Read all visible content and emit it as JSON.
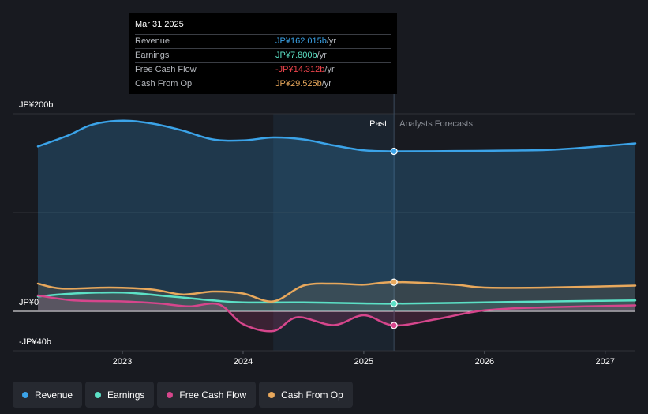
{
  "chart_data": {
    "type": "line",
    "y_unit_prefix": "JP¥",
    "y_axis_labels": [
      "JP¥200b",
      "JP¥0",
      "-JP¥40b"
    ],
    "ylim": [
      -40,
      200
    ],
    "x_ticks": [
      "2023",
      "2024",
      "2025",
      "2026",
      "2027"
    ],
    "xlim": [
      2022.3,
      2027.25
    ],
    "past_label": "Past",
    "forecast_label": "Analysts Forecasts",
    "highlight_start": 2024.25,
    "divider_x": 2025.25,
    "series": [
      {
        "name": "Revenue",
        "key": "revenue",
        "color": "#3ba3e8",
        "points": [
          [
            2022.3,
            167
          ],
          [
            2022.55,
            178
          ],
          [
            2022.75,
            189
          ],
          [
            2023.0,
            193
          ],
          [
            2023.25,
            190
          ],
          [
            2023.5,
            183
          ],
          [
            2023.75,
            174
          ],
          [
            2024.0,
            173
          ],
          [
            2024.25,
            176
          ],
          [
            2024.5,
            174
          ],
          [
            2024.75,
            168
          ],
          [
            2025.0,
            163
          ],
          [
            2025.25,
            162
          ],
          [
            2025.75,
            162.3
          ],
          [
            2026.25,
            162.8
          ],
          [
            2026.5,
            163.3
          ],
          [
            2026.75,
            165
          ],
          [
            2027.25,
            170
          ]
        ]
      },
      {
        "name": "Earnings",
        "key": "earnings",
        "color": "#5ce1c6",
        "points": [
          [
            2022.3,
            15
          ],
          [
            2022.6,
            18
          ],
          [
            2023.0,
            19
          ],
          [
            2023.4,
            15
          ],
          [
            2023.75,
            11
          ],
          [
            2024.0,
            9
          ],
          [
            2024.5,
            9
          ],
          [
            2025.0,
            8
          ],
          [
            2025.25,
            7.8
          ],
          [
            2025.75,
            8.5
          ],
          [
            2026.25,
            9.5
          ],
          [
            2026.75,
            10.3
          ],
          [
            2027.25,
            11
          ]
        ]
      },
      {
        "name": "Free Cash Flow",
        "key": "fcf",
        "color": "#d6468c",
        "points": [
          [
            2022.3,
            16
          ],
          [
            2022.6,
            11
          ],
          [
            2023.0,
            10
          ],
          [
            2023.3,
            8
          ],
          [
            2023.55,
            5
          ],
          [
            2023.8,
            7
          ],
          [
            2024.0,
            -13
          ],
          [
            2024.25,
            -20
          ],
          [
            2024.45,
            -6
          ],
          [
            2024.75,
            -14
          ],
          [
            2025.0,
            -4
          ],
          [
            2025.25,
            -14.3
          ],
          [
            2025.6,
            -8
          ],
          [
            2026.0,
            1
          ],
          [
            2026.5,
            4
          ],
          [
            2027.25,
            6
          ]
        ]
      },
      {
        "name": "Cash From Op",
        "key": "cfo",
        "color": "#e8a85c",
        "points": [
          [
            2022.3,
            28
          ],
          [
            2022.5,
            23
          ],
          [
            2022.9,
            24
          ],
          [
            2023.25,
            22
          ],
          [
            2023.5,
            17
          ],
          [
            2023.75,
            20
          ],
          [
            2024.0,
            18
          ],
          [
            2024.25,
            10
          ],
          [
            2024.5,
            26
          ],
          [
            2024.75,
            28
          ],
          [
            2025.0,
            27
          ],
          [
            2025.25,
            29.5
          ],
          [
            2025.75,
            27
          ],
          [
            2026.0,
            24
          ],
          [
            2026.5,
            24
          ],
          [
            2027.25,
            26
          ]
        ]
      }
    ]
  },
  "tooltip": {
    "date": "Mar 31 2025",
    "rows": [
      {
        "label": "Revenue",
        "value": "JP¥162.015b",
        "unit": " /yr",
        "color": "#3ba3e8"
      },
      {
        "label": "Earnings",
        "value": "JP¥7.800b",
        "unit": " /yr",
        "color": "#5ce1c6"
      },
      {
        "label": "Free Cash Flow",
        "value": "-JP¥14.312b",
        "unit": " /yr",
        "color": "#e8434a"
      },
      {
        "label": "Cash From Op",
        "value": "JP¥29.525b",
        "unit": " /yr",
        "color": "#e8a85c"
      }
    ]
  },
  "legend": [
    {
      "label": "Revenue",
      "color": "#3ba3e8"
    },
    {
      "label": "Earnings",
      "color": "#5ce1c6"
    },
    {
      "label": "Free Cash Flow",
      "color": "#d6468c"
    },
    {
      "label": "Cash From Op",
      "color": "#e8a85c"
    }
  ]
}
